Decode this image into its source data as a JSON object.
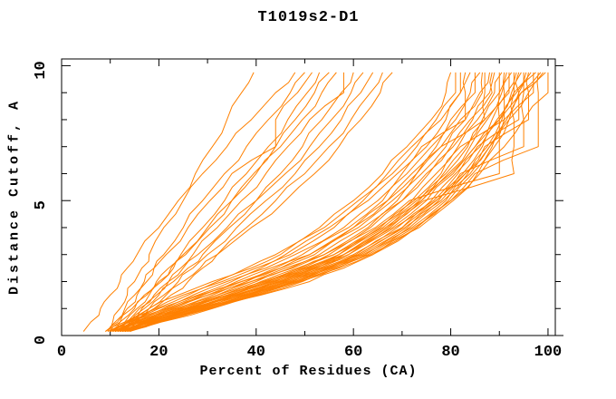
{
  "page": {
    "background": "#ffffff"
  },
  "chart_data": {
    "type": "line",
    "title": "T1019s2-D1",
    "xlabel": "Percent of Residues (CA)",
    "ylabel": "Distance Cutoff, A",
    "xlim": [
      0,
      100
    ],
    "ylim": [
      0,
      10
    ],
    "x_major_ticks": [
      0,
      20,
      40,
      60,
      80,
      100
    ],
    "x_tick_labels": [
      "0",
      "20",
      "40",
      "60",
      "80",
      "100"
    ],
    "x_minor_ticks": [
      10,
      30,
      50,
      70,
      90
    ],
    "y_major_ticks": [
      0,
      5,
      10
    ],
    "y_tick_labels": [
      "0",
      "5",
      "10"
    ],
    "y_minor_ticks": [
      1,
      2,
      3,
      4,
      6,
      7,
      8,
      9
    ],
    "grid": false,
    "legend": null,
    "series_color": "#ff8000",
    "frame_color": "#000000",
    "series_name": "model-accuracy-curves",
    "levels": [
      0.15,
      0.5,
      1,
      1.5,
      2,
      2.5,
      3,
      4,
      5,
      6,
      7,
      8,
      9,
      9.75
    ],
    "curves": [
      [
        4.5,
        6,
        8,
        10,
        12,
        13.5,
        15.5,
        20,
        24,
        27.5,
        31,
        34,
        37,
        39.5
      ],
      [
        9,
        10.5,
        12,
        13.5,
        15,
        16.5,
        18,
        21,
        25,
        29,
        34,
        39,
        44,
        48
      ],
      [
        10,
        11.5,
        13.5,
        15.5,
        17.5,
        19,
        21,
        25,
        29,
        33.5,
        38,
        42.5,
        47,
        50
      ],
      [
        9.5,
        11,
        13,
        15,
        17,
        19,
        21.5,
        26,
        30.5,
        35,
        44,
        44,
        48.5,
        51.5
      ],
      [
        10.5,
        12,
        14.5,
        17,
        19.5,
        22,
        24.5,
        29,
        33.5,
        38,
        42.5,
        46.5,
        50.5,
        53
      ],
      [
        11,
        13,
        15.5,
        18,
        20.5,
        23,
        25.5,
        30.5,
        35,
        39.5,
        44,
        48,
        52,
        55
      ],
      [
        10,
        12,
        15,
        17.5,
        20,
        22.5,
        25,
        30,
        35,
        40,
        45,
        49.5,
        53.5,
        56.5
      ],
      [
        11.5,
        13.5,
        16.5,
        19.5,
        22,
        24.5,
        27,
        32,
        37,
        42,
        46.5,
        51,
        58,
        58
      ],
      [
        12,
        14,
        17,
        20,
        23,
        26,
        29,
        34.5,
        40,
        45,
        49.5,
        53.5,
        57.5,
        60
      ],
      [
        11,
        13.5,
        16,
        19,
        22,
        25,
        28,
        34,
        40,
        46,
        51,
        55.5,
        59.5,
        62
      ],
      [
        12.5,
        15,
        18,
        21,
        24,
        27,
        30,
        36,
        42,
        48,
        53,
        57.5,
        61.5,
        64
      ],
      [
        13,
        15.5,
        19,
        22.5,
        26,
        29,
        32,
        38,
        44,
        50,
        55,
        59.5,
        63.5,
        66
      ],
      [
        12,
        14.5,
        18,
        21.5,
        25,
        28.5,
        32,
        39,
        46,
        52,
        57,
        61.5,
        65.5,
        68
      ],
      [
        9,
        13,
        18,
        24,
        31,
        38,
        44,
        53,
        60,
        66,
        71,
        76,
        79,
        80
      ],
      [
        9.5,
        13.5,
        19,
        25,
        32,
        39,
        45,
        54,
        61,
        67,
        72,
        77,
        81,
        81
      ],
      [
        10,
        13.5,
        19.5,
        26,
        33,
        40,
        46,
        55,
        62,
        68,
        73,
        78,
        82,
        82
      ],
      [
        10,
        14,
        20,
        27,
        34,
        41,
        47,
        56,
        63,
        69,
        74,
        83,
        83,
        83
      ],
      [
        10,
        14,
        21,
        28,
        35,
        42,
        48,
        58,
        65,
        70,
        75,
        79,
        82,
        84
      ],
      [
        10.5,
        14.5,
        21.5,
        28.5,
        36,
        43,
        49.5,
        59,
        66,
        71,
        76,
        80,
        85,
        85
      ],
      [
        10,
        15,
        22,
        29,
        37,
        44,
        51,
        60,
        67,
        72,
        77,
        81,
        84,
        86
      ],
      [
        11,
        15,
        22.5,
        30,
        37,
        45,
        51,
        60,
        67,
        73,
        78,
        82,
        86.5,
        86.5
      ],
      [
        11,
        15,
        23,
        30,
        38,
        45,
        52,
        61,
        68,
        73,
        78,
        87,
        87,
        87
      ],
      [
        10.5,
        15.5,
        23.5,
        31,
        39,
        46,
        53,
        62,
        69,
        74,
        79,
        83,
        86,
        88
      ],
      [
        11,
        16,
        24,
        32,
        39,
        47,
        54,
        63,
        70,
        75,
        80,
        84,
        88.5,
        88.5
      ],
      [
        11.5,
        16,
        24.5,
        32,
        40,
        47.5,
        54,
        63.5,
        70,
        75.5,
        80.5,
        84.5,
        88,
        89
      ],
      [
        11,
        16,
        25,
        33,
        41,
        48.5,
        55,
        64.5,
        71.5,
        90,
        90,
        90,
        90,
        90
      ],
      [
        12,
        16.5,
        25.5,
        33,
        41.5,
        49,
        56,
        65,
        72,
        77,
        81.5,
        85.5,
        89,
        90.5
      ],
      [
        11.5,
        16.5,
        26,
        34,
        42,
        49.5,
        56,
        65.5,
        72.5,
        78,
        82,
        91,
        91,
        91
      ],
      [
        12,
        17,
        26,
        34.5,
        42.5,
        50,
        57,
        66,
        73,
        78.5,
        83,
        86.5,
        90,
        91.5
      ],
      [
        11.5,
        17,
        26.5,
        35,
        43,
        50.5,
        57,
        66.5,
        73.5,
        79,
        83.5,
        87,
        92,
        92
      ],
      [
        12.5,
        17.5,
        27,
        35,
        43.5,
        51,
        58,
        67,
        74,
        79.5,
        84,
        87.5,
        90.5,
        92.5
      ],
      [
        12,
        17.5,
        27,
        35.5,
        44,
        51.5,
        58,
        67.5,
        74.5,
        93,
        93,
        93,
        93,
        93
      ],
      [
        12.5,
        18,
        27.5,
        36,
        44.5,
        52,
        59,
        68,
        75,
        80.5,
        85,
        88.5,
        91.5,
        93.5
      ],
      [
        12,
        18,
        28,
        36.5,
        45,
        52.5,
        59,
        68.5,
        76,
        81,
        85.5,
        94,
        94,
        94
      ],
      [
        13,
        18,
        28,
        37,
        45.5,
        53,
        60,
        69,
        76.5,
        81.5,
        86,
        89.5,
        92.5,
        94.5
      ],
      [
        12.5,
        18.5,
        28.5,
        37.5,
        46,
        53.5,
        60.5,
        70,
        77,
        82,
        95,
        95,
        95,
        95
      ],
      [
        13,
        19,
        29,
        38,
        46.5,
        54,
        61,
        70.5,
        77.5,
        82.5,
        86.5,
        90,
        93,
        95.5
      ],
      [
        12.5,
        19,
        29,
        38,
        47,
        54.5,
        61.5,
        71,
        78,
        83,
        87,
        96,
        96,
        96
      ],
      [
        13.5,
        19.5,
        29.5,
        38.5,
        47.5,
        55,
        62,
        71.5,
        78.5,
        83.5,
        87.5,
        90.5,
        93.5,
        96.5
      ],
      [
        13,
        19.5,
        30,
        39,
        48,
        55.5,
        62.5,
        72,
        79,
        84,
        88,
        91,
        97,
        97
      ],
      [
        13.5,
        20,
        30,
        39.5,
        48.5,
        56,
        63,
        72.5,
        79.5,
        84.5,
        88.5,
        91.5,
        94,
        97.5
      ],
      [
        13,
        20,
        30.5,
        40,
        49,
        56.5,
        63.5,
        73,
        80,
        85,
        98,
        98,
        98,
        98
      ],
      [
        14,
        20.5,
        31,
        40.5,
        49.5,
        57,
        64,
        73.5,
        80.5,
        85.5,
        89,
        92,
        94.5,
        98.5
      ],
      [
        12,
        17,
        26,
        36,
        45,
        52,
        58,
        67,
        74,
        80,
        85,
        90,
        94.5,
        99
      ],
      [
        13,
        18,
        28,
        38,
        48,
        55,
        61,
        70,
        77,
        83,
        88,
        92,
        96,
        99.5
      ],
      [
        14,
        20,
        30,
        41,
        51,
        58,
        64,
        73,
        80,
        86,
        91,
        95,
        100,
        100
      ]
    ]
  }
}
